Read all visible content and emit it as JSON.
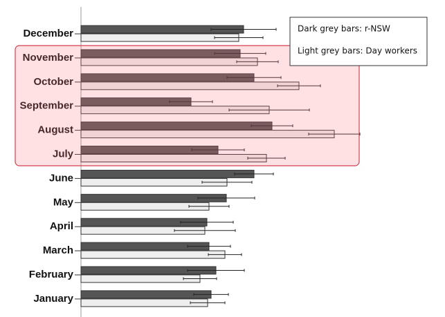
{
  "chart_data": {
    "type": "hbar-error",
    "categories": [
      "December",
      "November",
      "October",
      "September",
      "August",
      "July",
      "June",
      "May",
      "April",
      "March",
      "February",
      "January"
    ],
    "series": [
      {
        "name": "Dark grey bars: r-NSW",
        "color": "#555555",
        "values": [
          235,
          230,
          250,
          159,
          276,
          198,
          250,
          210,
          182,
          185,
          195,
          188
        ],
        "errors": [
          47,
          37,
          39,
          31,
          30,
          38,
          28,
          41,
          38,
          31,
          41,
          25
        ]
      },
      {
        "name": "Light grey bars: Day workers",
        "color": "#eeeeee",
        "values": [
          228,
          255,
          315,
          272,
          366,
          268,
          211,
          185,
          179,
          208,
          172,
          183
        ],
        "errors": [
          35,
          30,
          31,
          58,
          37,
          27,
          36,
          29,
          44,
          24,
          24,
          25
        ]
      }
    ],
    "xlim": [
      0,
      500
    ]
  }
}
